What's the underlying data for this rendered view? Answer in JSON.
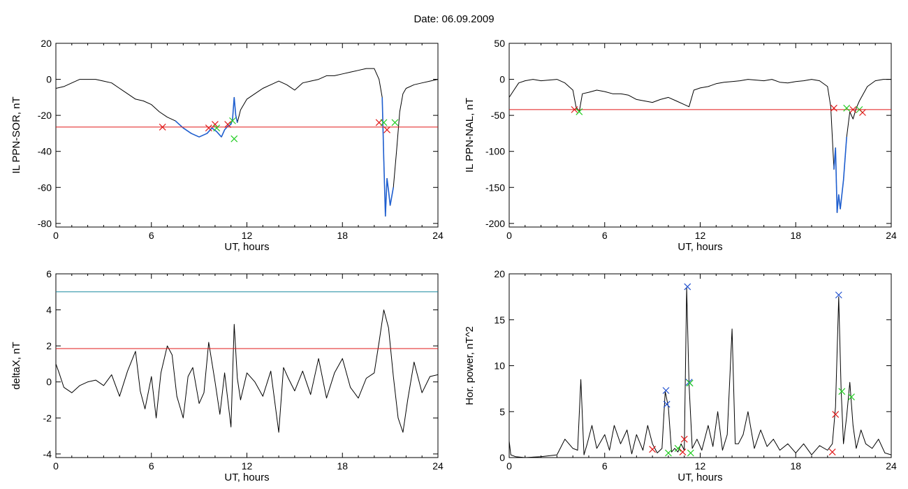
{
  "figure": {
    "title": "Date:  06.09.2009",
    "colors": {
      "curve": "#000000",
      "highlight": "#1f5fd0",
      "threshold": "#e01818",
      "upper_threshold": "#1a8aa0",
      "marker_red": "#e01818",
      "marker_green": "#22cc22",
      "marker_blue": "#2050d0"
    }
  },
  "chart_data": [
    {
      "id": "top-left",
      "type": "line",
      "xlabel": "UT, hours",
      "ylabel": "IL PPN-SOR, nT",
      "xlim": [
        0,
        24
      ],
      "ylim": [
        -82,
        20
      ],
      "xticks": [
        0,
        6,
        12,
        18,
        24
      ],
      "yticks": [
        -80,
        -60,
        -40,
        -20,
        0,
        20
      ],
      "grid": false,
      "series": [
        {
          "kind": "line",
          "x": [
            0,
            0.5,
            1,
            1.5,
            2,
            2.5,
            3,
            3.5,
            4,
            4.5,
            5,
            5.5,
            6,
            6.5,
            7,
            7.5,
            8,
            8.5,
            9,
            9.5,
            9.8,
            10.1,
            10.4,
            10.6,
            10.8,
            11.0,
            11.1,
            11.2,
            11.3,
            11.4,
            11.6,
            12,
            12.5,
            13,
            13.5,
            14,
            14.5,
            15,
            15.5,
            16,
            16.5,
            17,
            17.5,
            18,
            18.5,
            19,
            19.5,
            20,
            20.3,
            20.5,
            20.6,
            20.7,
            20.8,
            20.9,
            21.0,
            21.2,
            21.4,
            21.6,
            21.8,
            22,
            22.5,
            23,
            23.5,
            24
          ],
          "y": [
            -5,
            -4,
            -2,
            0,
            0,
            0,
            -1,
            -2,
            -5,
            -8,
            -11,
            -12,
            -14,
            -18,
            -21,
            -23,
            -27,
            -30,
            -32,
            -30,
            -27,
            -29,
            -32,
            -28,
            -26,
            -25,
            -22,
            -10,
            -20,
            -24,
            -17,
            -11,
            -8,
            -5,
            -3,
            -1,
            -3,
            -6,
            -2,
            -1,
            0,
            2,
            2,
            3,
            4,
            5,
            6,
            6,
            0,
            -10,
            -45,
            -76,
            -55,
            -62,
            -70,
            -60,
            -40,
            -18,
            -8,
            -5,
            -3,
            -2,
            -1,
            0
          ]
        },
        {
          "kind": "hline",
          "y": -26.5,
          "color": "threshold"
        }
      ],
      "markers": [
        {
          "x": 6.7,
          "y": -26.5,
          "color": "marker_red"
        },
        {
          "x": 9.6,
          "y": -27,
          "color": "marker_red"
        },
        {
          "x": 10.0,
          "y": -25,
          "color": "marker_red"
        },
        {
          "x": 10.1,
          "y": -27,
          "color": "marker_green"
        },
        {
          "x": 10.8,
          "y": -25,
          "color": "marker_red"
        },
        {
          "x": 11.1,
          "y": -23,
          "color": "marker_green"
        },
        {
          "x": 11.2,
          "y": -33,
          "color": "marker_green"
        },
        {
          "x": 20.3,
          "y": -24,
          "color": "marker_red"
        },
        {
          "x": 20.6,
          "y": -24,
          "color": "marker_green"
        },
        {
          "x": 20.8,
          "y": -28,
          "color": "marker_red"
        },
        {
          "x": 21.3,
          "y": -24,
          "color": "marker_green"
        }
      ],
      "highlight_ranges": [
        [
          7.5,
          11.4
        ],
        [
          20.4,
          21.3
        ]
      ]
    },
    {
      "id": "top-right",
      "type": "line",
      "xlabel": "UT, hours",
      "ylabel": "IL PPN-NAL, nT",
      "xlim": [
        0,
        24
      ],
      "ylim": [
        -205,
        50
      ],
      "xticks": [
        0,
        6,
        12,
        18,
        24
      ],
      "yticks": [
        -200,
        -150,
        -100,
        -50,
        0,
        50
      ],
      "grid": false,
      "series": [
        {
          "kind": "line",
          "x": [
            0,
            0.3,
            0.6,
            1,
            1.5,
            2,
            2.5,
            3,
            3.5,
            4,
            4.2,
            4.4,
            4.6,
            5,
            5.5,
            6,
            6.5,
            7,
            7.5,
            8,
            8.5,
            9,
            9.5,
            10,
            10.5,
            11,
            11.3,
            11.6,
            12,
            12.5,
            13,
            13.5,
            14,
            14.5,
            15,
            15.5,
            16,
            16.5,
            17,
            17.5,
            18,
            18.5,
            19,
            19.5,
            20,
            20.2,
            20.4,
            20.5,
            20.6,
            20.7,
            20.8,
            21.0,
            21.2,
            21.4,
            21.6,
            21.8,
            22,
            22.5,
            23,
            23.5,
            24
          ],
          "y": [
            -25,
            -15,
            -5,
            -2,
            0,
            -2,
            -1,
            0,
            -5,
            -15,
            -38,
            -45,
            -20,
            -18,
            -15,
            -17,
            -20,
            -20,
            -22,
            -28,
            -30,
            -32,
            -28,
            -25,
            -30,
            -35,
            -38,
            -15,
            -12,
            -10,
            -6,
            -4,
            -3,
            -2,
            0,
            -1,
            -2,
            0,
            -4,
            -5,
            -3,
            -2,
            0,
            -2,
            -10,
            -38,
            -125,
            -95,
            -185,
            -160,
            -180,
            -140,
            -80,
            -45,
            -55,
            -40,
            -30,
            -10,
            -2,
            0,
            0
          ]
        },
        {
          "kind": "hline",
          "y": -42,
          "color": "threshold"
        }
      ],
      "markers": [
        {
          "x": 4.1,
          "y": -42,
          "color": "marker_red"
        },
        {
          "x": 4.4,
          "y": -45,
          "color": "marker_green"
        },
        {
          "x": 20.4,
          "y": -40,
          "color": "marker_red"
        },
        {
          "x": 21.2,
          "y": -40,
          "color": "marker_green"
        },
        {
          "x": 21.6,
          "y": -42,
          "color": "marker_red"
        },
        {
          "x": 22.0,
          "y": -42,
          "color": "marker_green"
        },
        {
          "x": 22.2,
          "y": -46,
          "color": "marker_red"
        }
      ],
      "highlight_ranges": [
        [
          4.3,
          4.5
        ],
        [
          20.4,
          21.3
        ]
      ]
    },
    {
      "id": "bottom-left",
      "type": "line",
      "xlabel": "UT, hours",
      "ylabel": "deltaX, nT",
      "xlim": [
        0,
        24
      ],
      "ylim": [
        -4.2,
        6
      ],
      "xticks": [
        0,
        6,
        12,
        18,
        24
      ],
      "yticks": [
        -4,
        -2,
        0,
        2,
        4,
        6
      ],
      "grid": false,
      "series": [
        {
          "kind": "line",
          "x": [
            0,
            0.2,
            0.5,
            1,
            1.5,
            2,
            2.5,
            3,
            3.5,
            4,
            4.5,
            5,
            5.3,
            5.6,
            6,
            6.3,
            6.6,
            7,
            7.3,
            7.6,
            8,
            8.3,
            8.6,
            9,
            9.3,
            9.6,
            10,
            10.3,
            10.6,
            11,
            11.2,
            11.4,
            11.6,
            12,
            12.5,
            13,
            13.5,
            14,
            14.3,
            14.6,
            15,
            15.5,
            16,
            16.5,
            17,
            17.5,
            18,
            18.5,
            19,
            19.5,
            20,
            20.3,
            20.6,
            20.9,
            21.2,
            21.5,
            21.8,
            22.1,
            22.5,
            23,
            23.5,
            24
          ],
          "y": [
            1.0,
            0.5,
            -0.3,
            -0.6,
            -0.2,
            0.0,
            0.1,
            -0.2,
            0.4,
            -0.8,
            0.6,
            1.7,
            -0.5,
            -1.5,
            0.3,
            -2.0,
            0.5,
            2.0,
            1.5,
            -0.8,
            -2.0,
            0.3,
            0.8,
            -1.2,
            -0.6,
            2.2,
            0.0,
            -1.8,
            0.5,
            -2.5,
            3.2,
            0.2,
            -1.0,
            0.5,
            0.0,
            -0.8,
            0.6,
            -2.8,
            0.8,
            0.2,
            -0.5,
            0.6,
            -0.7,
            1.3,
            -0.9,
            0.5,
            1.3,
            -0.3,
            -0.9,
            0.2,
            0.5,
            2.2,
            4.0,
            3.0,
            0.3,
            -2.0,
            -2.8,
            -1.0,
            1.1,
            -0.6,
            0.3,
            0.4
          ]
        },
        {
          "kind": "hline",
          "y": 1.85,
          "color": "threshold"
        },
        {
          "kind": "hline",
          "y": 5.0,
          "color": "upper_threshold"
        }
      ],
      "markers": [],
      "highlight_ranges": []
    },
    {
      "id": "bottom-right",
      "type": "line",
      "xlabel": "UT, hours",
      "ylabel": "Hor. power, nT^2",
      "xlim": [
        0,
        24
      ],
      "ylim": [
        0,
        20
      ],
      "xticks": [
        0,
        6,
        12,
        18,
        24
      ],
      "yticks": [
        0,
        5,
        10,
        15,
        20
      ],
      "grid": false,
      "series": [
        {
          "kind": "line",
          "x": [
            0,
            0.1,
            0.4,
            1,
            2,
            3,
            3.5,
            4,
            4.3,
            4.5,
            4.7,
            4.9,
            5.2,
            5.5,
            6,
            6.3,
            6.6,
            7,
            7.4,
            7.7,
            8,
            8.4,
            8.7,
            9,
            9.3,
            9.6,
            9.8,
            10.0,
            10.2,
            10.4,
            10.6,
            10.8,
            11.0,
            11.15,
            11.3,
            11.5,
            11.8,
            12.1,
            12.5,
            12.8,
            13.1,
            13.4,
            13.7,
            14.0,
            14.2,
            14.4,
            14.7,
            15,
            15.4,
            15.8,
            16.2,
            16.6,
            17,
            17.5,
            18,
            18.5,
            19,
            19.5,
            20,
            20.3,
            20.5,
            20.7,
            20.85,
            21.0,
            21.2,
            21.4,
            21.6,
            21.8,
            22.1,
            22.4,
            22.8,
            23.2,
            23.6,
            24
          ],
          "y": [
            1.8,
            0.3,
            0.1,
            0.0,
            0.1,
            0.3,
            2.0,
            1.0,
            0.8,
            8.5,
            0.3,
            1.5,
            3.5,
            1.0,
            2.5,
            0.8,
            3.5,
            1.5,
            3.0,
            0.4,
            2.5,
            0.8,
            3.5,
            1.5,
            0.5,
            1.0,
            7.2,
            5.5,
            0.6,
            1.0,
            0.6,
            1.5,
            0.8,
            18.5,
            8.0,
            1.0,
            2.0,
            0.8,
            3.5,
            1.2,
            5.0,
            0.8,
            2.5,
            14.0,
            1.5,
            1.5,
            2.5,
            5.0,
            1.0,
            3.0,
            1.2,
            2.0,
            0.8,
            1.5,
            0.5,
            1.5,
            0.3,
            1.3,
            0.8,
            1.5,
            5.5,
            17.5,
            7.5,
            1.5,
            4.5,
            8.2,
            3.5,
            1.0,
            3.0,
            1.5,
            1.0,
            2.0,
            0.5,
            0.3
          ]
        }
      ],
      "markers": [
        {
          "x": 9.0,
          "y": 0.9,
          "color": "marker_red"
        },
        {
          "x": 9.85,
          "y": 7.3,
          "color": "marker_blue"
        },
        {
          "x": 9.9,
          "y": 5.8,
          "color": "marker_blue"
        },
        {
          "x": 10.0,
          "y": 0.5,
          "color": "marker_green"
        },
        {
          "x": 10.6,
          "y": 1.0,
          "color": "marker_green"
        },
        {
          "x": 10.9,
          "y": 0.6,
          "color": "marker_red"
        },
        {
          "x": 11.0,
          "y": 2.0,
          "color": "marker_red"
        },
        {
          "x": 11.2,
          "y": 18.6,
          "color": "marker_blue"
        },
        {
          "x": 11.3,
          "y": 8.2,
          "color": "marker_blue"
        },
        {
          "x": 11.35,
          "y": 8.1,
          "color": "marker_green"
        },
        {
          "x": 11.4,
          "y": 0.5,
          "color": "marker_green"
        },
        {
          "x": 20.3,
          "y": 0.6,
          "color": "marker_red"
        },
        {
          "x": 20.5,
          "y": 4.7,
          "color": "marker_red"
        },
        {
          "x": 20.7,
          "y": 17.7,
          "color": "marker_blue"
        },
        {
          "x": 20.9,
          "y": 7.2,
          "color": "marker_green"
        },
        {
          "x": 21.5,
          "y": 6.6,
          "color": "marker_green"
        }
      ],
      "highlight_ranges": []
    }
  ]
}
